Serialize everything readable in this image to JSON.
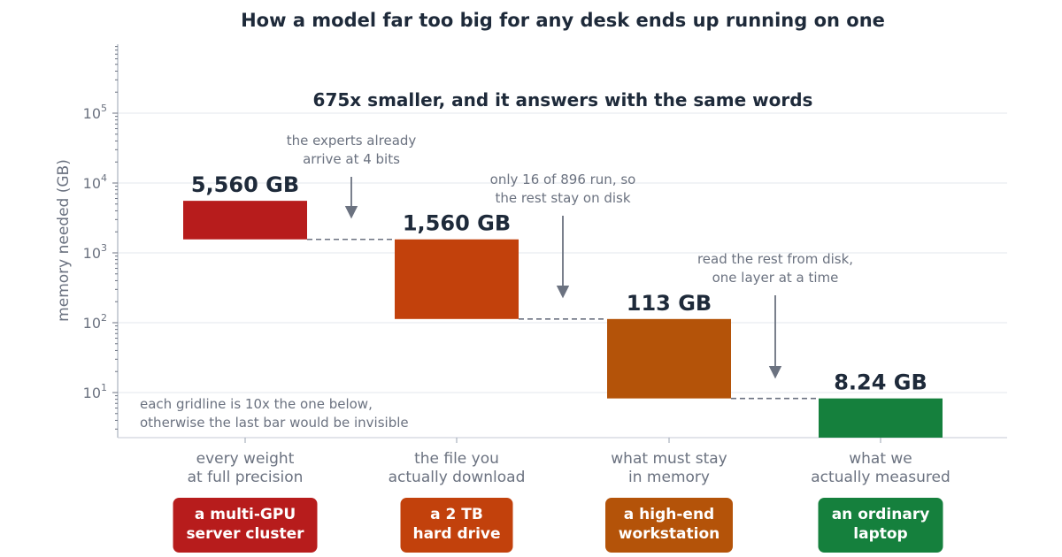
{
  "chart_data": {
    "type": "bar",
    "title": "How a model far too big for any desk ends up running on one",
    "subtitle": "675x smaller, and it answers with the same words",
    "ylabel": "memory needed (GB)",
    "xlabel": "",
    "yscale": "log",
    "ylim": [
      2.2,
      1000000
    ],
    "yticks": [
      {
        "base": "10",
        "exp": "1",
        "value": 10
      },
      {
        "base": "10",
        "exp": "2",
        "value": 100
      },
      {
        "base": "10",
        "exp": "3",
        "value": 1000
      },
      {
        "base": "10",
        "exp": "4",
        "value": 10000
      },
      {
        "base": "10",
        "exp": "5",
        "value": 100000
      }
    ],
    "grid": true,
    "categories": [
      [
        "every weight",
        "at full precision"
      ],
      [
        "the file you",
        "actually download"
      ],
      [
        "what must stay",
        "in memory"
      ],
      [
        "what we",
        "actually measured"
      ]
    ],
    "bars": [
      {
        "start": 5560,
        "end": 1560,
        "label": "5,560 GB",
        "color": "#b71c1c"
      },
      {
        "start": 1560,
        "end": 113,
        "label": "1,560 GB",
        "color": "#c2410c"
      },
      {
        "start": 113,
        "end": 8.24,
        "label": "113 GB",
        "color": "#b45309"
      },
      {
        "start": 8.24,
        "end": 2.2,
        "label": "8.24 GB",
        "color": "#15803d"
      }
    ],
    "values": [
      5560,
      1560,
      113,
      8.24
    ],
    "annotations": [
      {
        "lines": [
          "the experts already",
          "arrive at 4 bits"
        ]
      },
      {
        "lines": [
          "only 16 of 896 run, so",
          "the rest stay on disk"
        ]
      },
      {
        "lines": [
          "read the rest from disk,",
          "one layer at a time"
        ]
      }
    ],
    "note": [
      "each gridline is 10x the one below,",
      "otherwise the last bar would be invisible"
    ],
    "badges": [
      {
        "lines": [
          "a multi-GPU",
          "server cluster"
        ],
        "color": "#b71c1c"
      },
      {
        "lines": [
          "a 2 TB",
          "hard drive"
        ],
        "color": "#c2410c"
      },
      {
        "lines": [
          "a high-end",
          "workstation"
        ],
        "color": "#b45309"
      },
      {
        "lines": [
          "an ordinary",
          "laptop"
        ],
        "color": "#15803d"
      }
    ]
  }
}
